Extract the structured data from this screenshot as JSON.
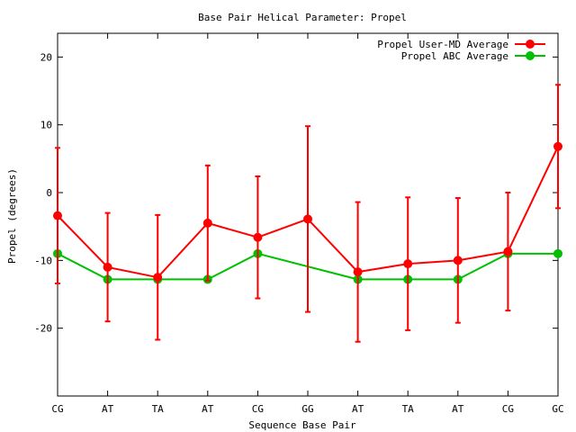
{
  "chart_data": {
    "type": "line",
    "title": "Base Pair Helical Parameter: Propel",
    "xlabel": "Sequence Base Pair",
    "ylabel": "Propel (degrees)",
    "categories": [
      "CG",
      "AT",
      "TA",
      "AT",
      "CG",
      "GG",
      "AT",
      "TA",
      "AT",
      "CG",
      "GC"
    ],
    "ylim": [
      -30,
      23.5
    ],
    "yticks": [
      20,
      10,
      0,
      -10,
      -20
    ],
    "ytick_labels": [
      "20",
      "10",
      "0",
      "-10",
      "-20"
    ],
    "grid": false,
    "legend_position": "top-right",
    "series": [
      {
        "name": "Propel User-MD Average",
        "color": "#ff0000",
        "values": [
          -3.4,
          -11.0,
          -12.5,
          -4.5,
          -6.6,
          -3.9,
          -11.7,
          -10.5,
          -10.0,
          -8.7,
          6.8
        ],
        "error": [
          10.0,
          8.0,
          9.2,
          8.5,
          9.0,
          13.7,
          10.3,
          9.8,
          9.2,
          8.7,
          9.1
        ]
      },
      {
        "name": "Propel ABC Average",
        "color": "#00c000",
        "values": [
          -9.0,
          -12.8,
          -12.8,
          -12.8,
          -9.0,
          null,
          -12.8,
          -12.8,
          -12.8,
          -9.0,
          -9.0
        ],
        "error": null
      }
    ]
  }
}
